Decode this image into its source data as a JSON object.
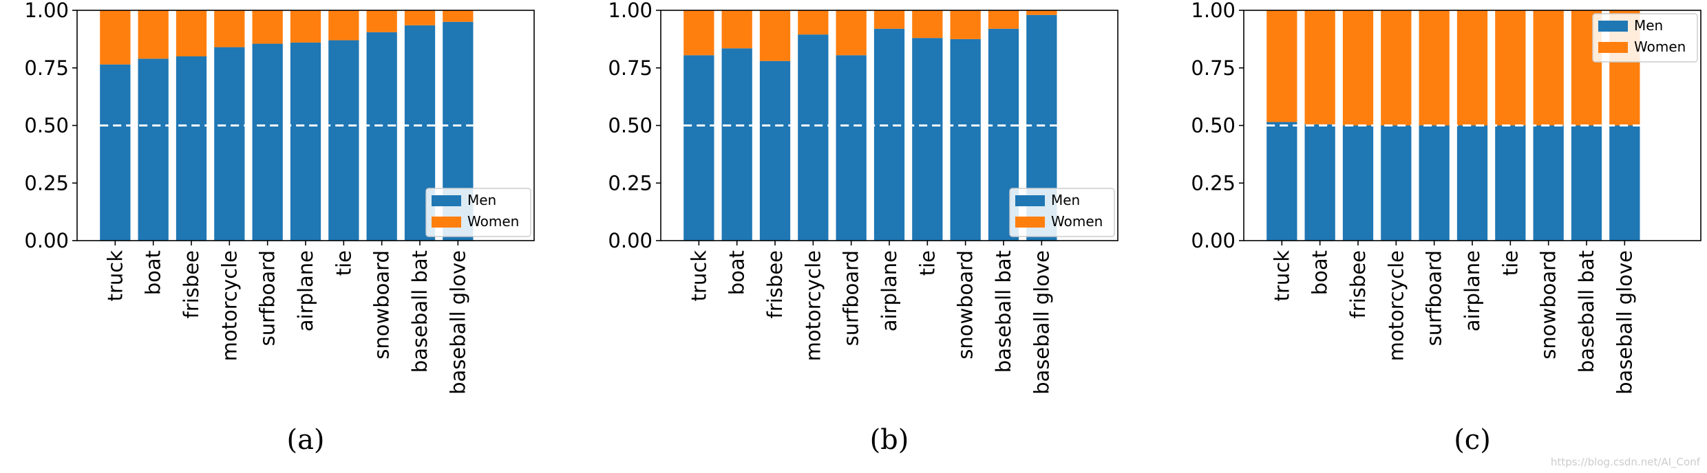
{
  "chart_data": [
    {
      "type": "bar",
      "stacked": true,
      "caption": "(a)",
      "categories": [
        "truck",
        "boat",
        "frisbee",
        "motorcycle",
        "surfboard",
        "airplane",
        "tie",
        "snowboard",
        "baseball bat",
        "baseball glove"
      ],
      "series": [
        {
          "name": "Men",
          "color": "#1f77b4",
          "values": [
            0.765,
            0.79,
            0.8,
            0.84,
            0.855,
            0.86,
            0.87,
            0.905,
            0.935,
            0.95
          ]
        },
        {
          "name": "Women",
          "color": "#ff7f0e",
          "values": [
            0.235,
            0.21,
            0.2,
            0.16,
            0.145,
            0.14,
            0.13,
            0.095,
            0.065,
            0.05
          ]
        }
      ],
      "reference_line": 0.5,
      "ylim": [
        0,
        1.0
      ],
      "yticks": [
        "0.00",
        "0.25",
        "0.50",
        "0.75",
        "1.00"
      ],
      "legend": "lower-right"
    },
    {
      "type": "bar",
      "stacked": true,
      "caption": "(b)",
      "categories": [
        "truck",
        "boat",
        "frisbee",
        "motorcycle",
        "surfboard",
        "airplane",
        "tie",
        "snowboard",
        "baseball bat",
        "baseball glove"
      ],
      "series": [
        {
          "name": "Men",
          "color": "#1f77b4",
          "values": [
            0.805,
            0.835,
            0.78,
            0.895,
            0.805,
            0.92,
            0.88,
            0.875,
            0.92,
            0.98
          ]
        },
        {
          "name": "Women",
          "color": "#ff7f0e",
          "values": [
            0.195,
            0.165,
            0.22,
            0.105,
            0.195,
            0.08,
            0.12,
            0.125,
            0.08,
            0.02
          ]
        }
      ],
      "reference_line": 0.5,
      "ylim": [
        0,
        1.0
      ],
      "yticks": [
        "0.00",
        "0.25",
        "0.50",
        "0.75",
        "1.00"
      ],
      "legend": "lower-right"
    },
    {
      "type": "bar",
      "stacked": true,
      "caption": "(c)",
      "categories": [
        "truck",
        "boat",
        "frisbee",
        "motorcycle",
        "surfboard",
        "airplane",
        "tie",
        "snowboard",
        "baseball bat",
        "baseball glove"
      ],
      "series": [
        {
          "name": "Men",
          "color": "#1f77b4",
          "values": [
            0.515,
            0.505,
            0.5,
            0.5,
            0.5,
            0.5,
            0.5,
            0.5,
            0.5,
            0.5
          ]
        },
        {
          "name": "Women",
          "color": "#ff7f0e",
          "values": [
            0.485,
            0.495,
            0.5,
            0.5,
            0.5,
            0.5,
            0.5,
            0.5,
            0.5,
            0.5
          ]
        }
      ],
      "reference_line": 0.5,
      "ylim": [
        0,
        1.0
      ],
      "yticks": [
        "0.00",
        "0.25",
        "0.50",
        "0.75",
        "1.00"
      ],
      "legend": "upper-right"
    }
  ],
  "watermark": "https://blog.csdn.net/AI_Conf"
}
